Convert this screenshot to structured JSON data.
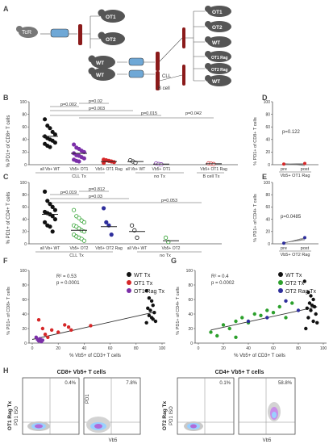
{
  "figure": {
    "panel_labels": [
      "A",
      "B",
      "C",
      "D",
      "E",
      "F",
      "G",
      "H"
    ]
  },
  "schematic": {
    "tcr_label": "TcR",
    "mice": [
      "OT1",
      "OT2",
      "WT",
      "WT"
    ],
    "sort_labels": [
      "CLL",
      "B cell"
    ],
    "recipients": [
      "OT1",
      "OT2",
      "WT",
      "OT1 Rag",
      "OT2 Rag",
      "WT"
    ]
  },
  "colors": {
    "wt": "#111111",
    "ot1": "#7b2fa8",
    "ot1_rag": "#d62728",
    "ot2": "#2ca02c",
    "ot2_rag": "#2e2e9c",
    "mouse": "#555555",
    "tube_blood": "#8b1a1a",
    "dish": "#6fa8d6"
  },
  "chart_data": [
    {
      "panel": "B",
      "type": "scatter",
      "ylabel": "% PD1+ of CD8+ T cells",
      "ylim": [
        0,
        100
      ],
      "yticks": [
        "0",
        "20",
        "40",
        "60",
        "80",
        "100"
      ],
      "categories": [
        "all Vb+ WT",
        "Vb5+ OT1",
        "Vb5+ OT1 Rag",
        "all Vb+ WT",
        "Vb5+ OT1",
        "Vb5+ OT1 Rag"
      ],
      "groups": [
        "CLL Tx",
        "no Tx",
        "B cell Tx"
      ],
      "pvalues": [
        "p=0.002",
        "p=0.02",
        "p=0.003",
        "p=0.015",
        "p=0.042"
      ],
      "series": [
        {
          "values": [
            72,
            62,
            58,
            52,
            48,
            45,
            42,
            40,
            38,
            35,
            33,
            30,
            28
          ],
          "mean": 45
        },
        {
          "values": [
            32,
            27,
            25,
            22,
            20,
            18,
            15,
            14,
            12,
            10,
            8,
            6,
            5
          ],
          "mean": 18
        },
        {
          "values": [
            8,
            7,
            6,
            5,
            4,
            3
          ],
          "mean": 5
        },
        {
          "values": [
            7,
            5,
            3
          ],
          "mean": 5
        },
        {
          "values": [
            2,
            1,
            0.5
          ],
          "mean": 1
        },
        {
          "values": [
            2,
            1.5,
            1
          ],
          "mean": 1.5
        }
      ]
    },
    {
      "panel": "C",
      "type": "scatter",
      "ylabel": "% PD1+ of CD4+ T cells",
      "ylim": [
        0,
        100
      ],
      "yticks": [
        "0",
        "20",
        "40",
        "60",
        "80",
        "100"
      ],
      "categories": [
        "all Vb+ WT",
        "Vb5+ OT2",
        "Vb5+ OT2 Rag",
        "all Vb+ WT",
        "Vb5+ OT2"
      ],
      "groups": [
        "CLL Tx",
        "no Tx"
      ],
      "pvalues": [
        "p=0.019",
        "p=0.812",
        "p=0.03",
        "p=0.053"
      ],
      "series": [
        {
          "values": [
            85,
            70,
            65,
            60,
            55,
            52,
            50,
            48,
            45,
            40,
            35,
            30,
            28,
            20
          ],
          "mean": 48
        },
        {
          "values": [
            55,
            45,
            42,
            38,
            35,
            30,
            28,
            25,
            22,
            20,
            15,
            12,
            10,
            8,
            5
          ],
          "mean": 22
        },
        {
          "values": [
            58,
            35,
            30,
            15
          ],
          "mean": 28
        },
        {
          "values": [
            30,
            22,
            10
          ],
          "mean": 20
        },
        {
          "values": [
            10,
            3
          ],
          "mean": 5
        }
      ]
    },
    {
      "panel": "D",
      "type": "line",
      "ylabel": "% PD1+ of CD8+ T cells",
      "ylim": [
        0,
        100
      ],
      "yticks": [
        "0",
        "20",
        "40",
        "60",
        "80",
        "100"
      ],
      "categories": [
        "pre",
        "post"
      ],
      "group": "Vb5+ OT1 Rag",
      "pvalue": "p=0.122",
      "values": [
        1,
        2
      ]
    },
    {
      "panel": "E",
      "type": "line",
      "ylabel": "% PD1+ of CD4+ T cells",
      "ylim": [
        0,
        100
      ],
      "yticks": [
        "0",
        "20",
        "40",
        "60",
        "80",
        "100"
      ],
      "categories": [
        "pre",
        "post"
      ],
      "group": "Vb5+ OT2 Rag",
      "pvalue": "p=0.0485",
      "values": [
        1,
        10
      ]
    },
    {
      "panel": "F",
      "type": "scatter",
      "xlabel": "% Vb5+ of CD3+ T cells",
      "ylabel": "% PD1+ of CD8+ T cells",
      "xlim": [
        0,
        100
      ],
      "ylim": [
        0,
        100
      ],
      "xticks": [
        "0",
        "20",
        "40",
        "60",
        "80",
        "100"
      ],
      "yticks": [
        "0",
        "20",
        "40",
        "60",
        "80",
        "100"
      ],
      "r2": "R² = 0.53",
      "p": "p = 0.0001",
      "legend": [
        "WT Tx",
        "OT1 Tx",
        "OT1 Rag Tx"
      ],
      "series": [
        {
          "name": "WT Tx",
          "x": [
            88,
            90,
            92,
            93,
            89,
            91,
            94,
            90,
            92,
            95,
            88,
            93
          ],
          "y": [
            72,
            62,
            58,
            52,
            48,
            45,
            42,
            38,
            35,
            30,
            28,
            33
          ]
        },
        {
          "name": "OT1 Tx",
          "x": [
            5,
            8,
            10,
            12,
            15,
            20,
            25,
            28,
            30,
            45
          ],
          "y": [
            32,
            20,
            12,
            8,
            18,
            15,
            25,
            22,
            18,
            24
          ]
        },
        {
          "name": "OT1 Rag Tx",
          "x": [
            3,
            4,
            5,
            6,
            7,
            8
          ],
          "y": [
            8,
            5,
            3,
            6,
            2,
            4
          ]
        }
      ],
      "trend": {
        "x": [
          0,
          95
        ],
        "y": [
          5,
          43
        ]
      }
    },
    {
      "panel": "G",
      "type": "scatter",
      "xlabel": "% Vb5+ of CD3+ T cells",
      "ylabel": "% PD1+ of CD4+ T cells",
      "xlim": [
        0,
        100
      ],
      "ylim": [
        0,
        100
      ],
      "xticks": [
        "0",
        "20",
        "40",
        "60",
        "80",
        "100"
      ],
      "yticks": [
        "0",
        "20",
        "40",
        "60",
        "80",
        "100"
      ],
      "r2": "R² = 0.4",
      "p": "p = 0.0002",
      "legend": [
        "WT Tx",
        "OT2 Tx",
        "OT2 Rag Tx"
      ],
      "series": [
        {
          "name": "WT Tx",
          "x": [
            85,
            88,
            90,
            92,
            89,
            91,
            93,
            87,
            90,
            94,
            88,
            92,
            95,
            86
          ],
          "y": [
            85,
            70,
            65,
            60,
            55,
            52,
            50,
            48,
            45,
            40,
            35,
            30,
            28,
            20
          ]
        },
        {
          "name": "OT2 Tx",
          "x": [
            10,
            15,
            20,
            25,
            30,
            35,
            40,
            45,
            50,
            55,
            60,
            65,
            70,
            75,
            30
          ],
          "y": [
            15,
            10,
            25,
            20,
            30,
            35,
            28,
            40,
            38,
            45,
            42,
            50,
            35,
            55,
            8
          ]
        },
        {
          "name": "OT2 Rag Tx",
          "x": [
            40,
            55,
            70,
            80
          ],
          "y": [
            30,
            35,
            58,
            45
          ]
        }
      ],
      "trend": {
        "x": [
          10,
          95
        ],
        "y": [
          18,
          50
        ]
      }
    }
  ],
  "flow": {
    "left_title": "CD8+ Vb5+ T cells",
    "right_title": "CD4+ Vb5+ T cells",
    "left_row_label": [
      "OT1 Rag Tx",
      "PD1 ISO"
    ],
    "right_row_label": [
      "OT2 Rag Tx",
      "PD1 ISO"
    ],
    "inner_y_label": "PD1",
    "x_label": "Vb5",
    "plots": [
      {
        "pct": "0.4%"
      },
      {
        "pct": "7.8%"
      },
      {
        "pct": "0.1%"
      },
      {
        "pct": "58.8%"
      }
    ]
  }
}
